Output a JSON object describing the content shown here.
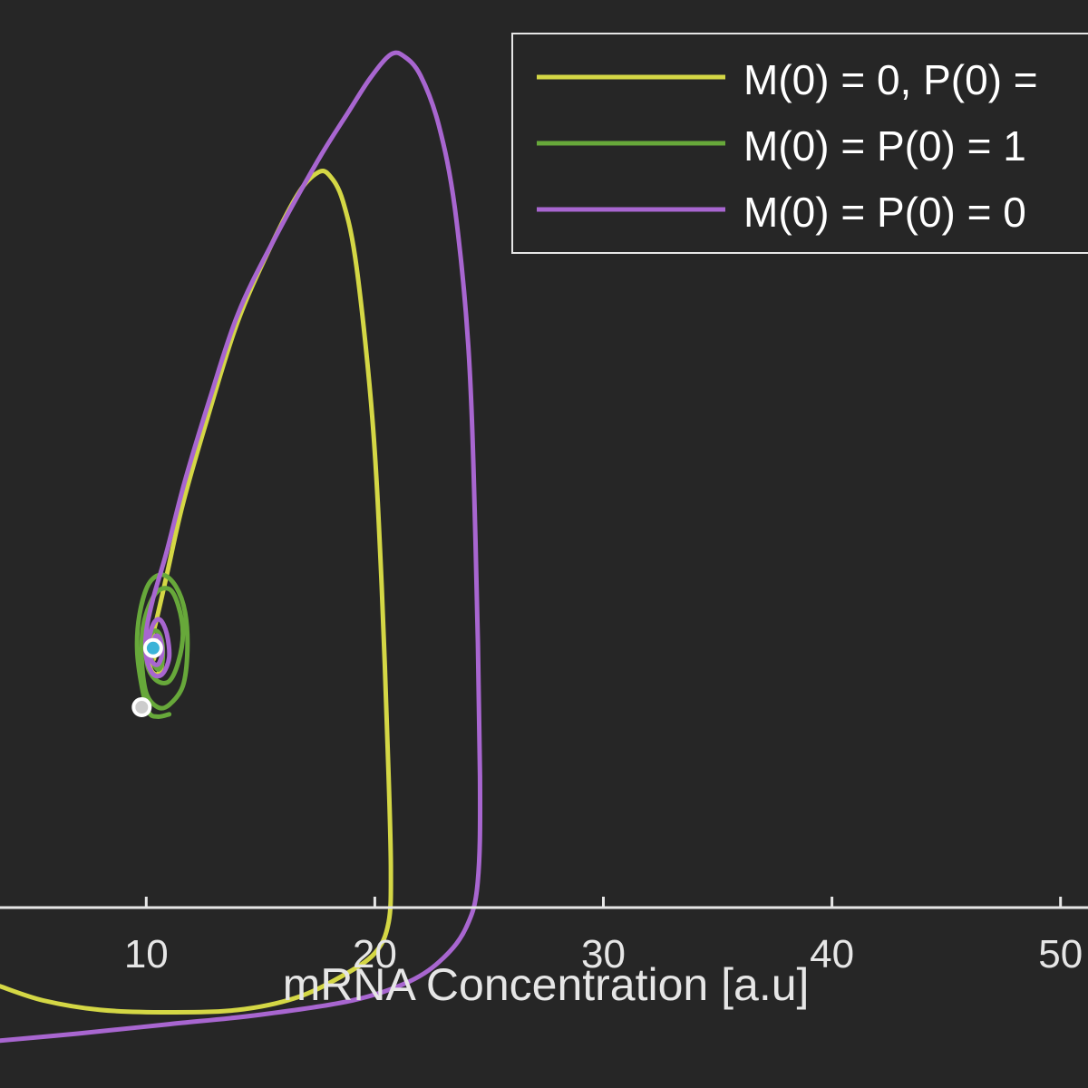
{
  "chart_data": {
    "type": "line",
    "title": "",
    "xlabel": "mRNA Concentration [a.u]",
    "ylabel": "",
    "xlim": [
      3.6,
      51.2
    ],
    "ylim": [
      -1.2,
      44.8
    ],
    "x_ticks": [
      10,
      20,
      30,
      40,
      50
    ],
    "x_tick_labels": [
      "10",
      "20",
      "30",
      "40",
      "50"
    ],
    "grid": false,
    "legend_placement": "top-right",
    "colors": {
      "background": "#262626",
      "axis": "#e6e6e6",
      "yellow": "#d4d745",
      "green": "#67a83a",
      "purple": "#a866d0",
      "steady_state_marker": "#3bb3d8",
      "start_marker": "#cccccc"
    },
    "series": [
      {
        "name": "M(0) = 0, P(0) = ",
        "color": "#d4d745",
        "points": [
          [
            3.6,
            3.1
          ],
          [
            5.5,
            2.5
          ],
          [
            8,
            2.1
          ],
          [
            11,
            2.0
          ],
          [
            14,
            2.1
          ],
          [
            16.5,
            2.6
          ],
          [
            18.5,
            3.5
          ],
          [
            20,
            4.5
          ],
          [
            20.6,
            5.8
          ],
          [
            20.7,
            8
          ],
          [
            20.6,
            12
          ],
          [
            20.3,
            20
          ],
          [
            19.9,
            27
          ],
          [
            19.2,
            33.5
          ],
          [
            18.6,
            36.3
          ],
          [
            18.0,
            37.4
          ],
          [
            17.5,
            37.5
          ],
          [
            16.7,
            36.7
          ],
          [
            15.5,
            34.5
          ],
          [
            14,
            31.2
          ],
          [
            12.7,
            27.2
          ],
          [
            11.6,
            23.5
          ],
          [
            10.9,
            20.5
          ],
          [
            10.4,
            18.4
          ],
          [
            10.1,
            17.3
          ],
          [
            10.2,
            16.5
          ],
          [
            10.5,
            16.3
          ],
          [
            10.7,
            16.8
          ],
          [
            10.6,
            17.6
          ],
          [
            10.4,
            17.9
          ],
          [
            10.2,
            17.4
          ],
          [
            10.25,
            16.9
          ],
          [
            10.35,
            17.0
          ],
          [
            10.3,
            17.3
          ]
        ]
      },
      {
        "name": "M(0) = P(0) = 1",
        "color": "#67a83a",
        "points": [
          [
            10.1,
            17.7
          ],
          [
            10.2,
            17.0
          ],
          [
            10.5,
            16.5
          ],
          [
            10.7,
            16.8
          ],
          [
            10.7,
            17.6
          ],
          [
            10.5,
            18.1
          ],
          [
            10.2,
            18.0
          ],
          [
            10.0,
            17.3
          ],
          [
            10.1,
            16.5
          ],
          [
            10.5,
            16.0
          ],
          [
            11.0,
            16.0
          ],
          [
            11.4,
            16.8
          ],
          [
            11.6,
            18.0
          ],
          [
            11.4,
            19.2
          ],
          [
            11.0,
            19.9
          ],
          [
            10.4,
            19.7
          ],
          [
            9.9,
            18.5
          ],
          [
            9.8,
            17.0
          ],
          [
            10.0,
            15.5
          ],
          [
            10.5,
            14.9
          ],
          [
            11.0,
            15.0
          ],
          [
            11.6,
            15.8
          ],
          [
            11.8,
            17.3
          ],
          [
            11.7,
            18.9
          ],
          [
            11.3,
            20.0
          ],
          [
            10.7,
            20.5
          ],
          [
            10.1,
            20.1
          ],
          [
            9.7,
            18.8
          ],
          [
            9.6,
            17.3
          ],
          [
            9.8,
            15.8
          ],
          [
            10.1,
            14.7
          ],
          [
            10.5,
            14.5
          ],
          [
            11.0,
            14.6
          ]
        ]
      },
      {
        "name": "M(0) = P(0) = 0",
        "color": "#a866d0",
        "points": [
          [
            3.6,
            0.8
          ],
          [
            7,
            1.1
          ],
          [
            11,
            1.5
          ],
          [
            15,
            1.9
          ],
          [
            19,
            2.5
          ],
          [
            21.5,
            3.3
          ],
          [
            23,
            4.3
          ],
          [
            24.0,
            5.6
          ],
          [
            24.5,
            7.5
          ],
          [
            24.6,
            12
          ],
          [
            24.4,
            22
          ],
          [
            24.1,
            30
          ],
          [
            23.5,
            36
          ],
          [
            22.8,
            39.5
          ],
          [
            22.0,
            41.6
          ],
          [
            21.3,
            42.4
          ],
          [
            20.7,
            42.5
          ],
          [
            19.8,
            41.5
          ],
          [
            18.8,
            40.0
          ],
          [
            17.5,
            38.0
          ],
          [
            15.5,
            34.5
          ],
          [
            14,
            31.5
          ],
          [
            12.8,
            28
          ],
          [
            11.7,
            24.5
          ],
          [
            10.9,
            21.5
          ],
          [
            10.3,
            19.5
          ],
          [
            10.0,
            18.1
          ],
          [
            10.0,
            17.0
          ],
          [
            10.3,
            16.3
          ],
          [
            10.7,
            16.3
          ],
          [
            11.0,
            17.0
          ],
          [
            10.9,
            18.0
          ],
          [
            10.6,
            18.6
          ],
          [
            10.3,
            18.4
          ],
          [
            10.1,
            17.6
          ],
          [
            10.2,
            16.9
          ],
          [
            10.5,
            16.7
          ],
          [
            10.7,
            17.2
          ],
          [
            10.6,
            17.8
          ],
          [
            10.4,
            17.9
          ],
          [
            10.3,
            17.5
          ]
        ]
      }
    ],
    "markers": [
      {
        "label": "steady-state",
        "x": 10.3,
        "y": 17.4,
        "fill": "#3bb3d8"
      },
      {
        "label": "start",
        "x": 9.8,
        "y": 14.9,
        "fill": "#cccccc"
      }
    ]
  }
}
